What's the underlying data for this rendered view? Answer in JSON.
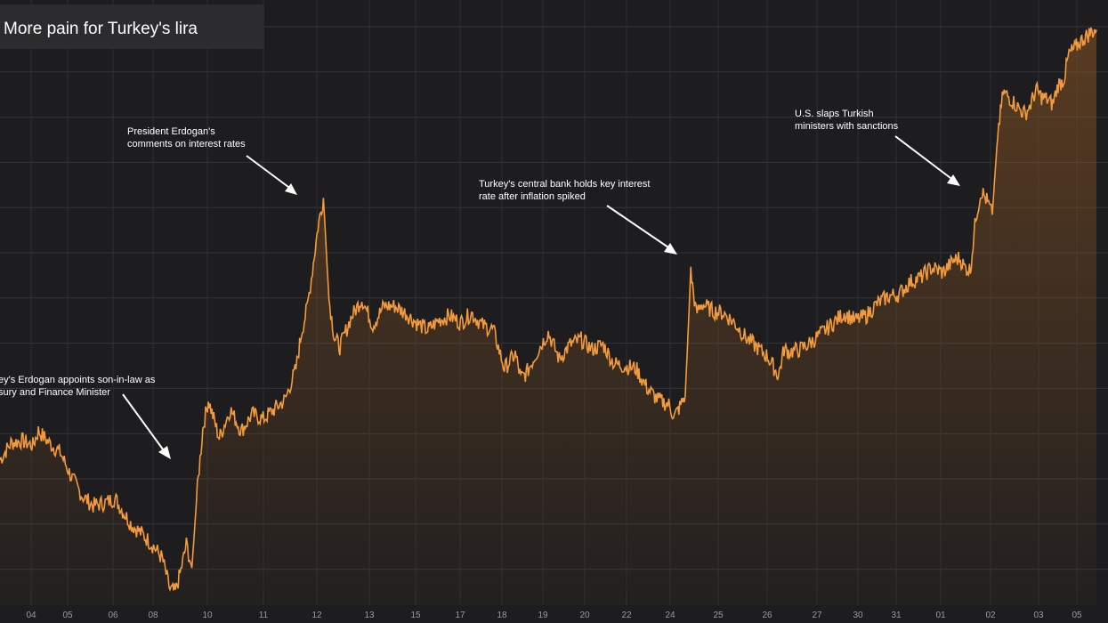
{
  "header": {
    "title": "More pain for Turkey's lira"
  },
  "colors": {
    "background": "#1d1d20",
    "grid": "#34343a",
    "line": "#f39a3c",
    "area_top": "#8a5522",
    "annotation": "#ffffff",
    "axis_text": "#9a9aa0"
  },
  "chart_data": {
    "type": "area",
    "title": "More pain for Turkey's lira",
    "xlabel": "",
    "ylabel": "",
    "grid": true,
    "x_tick_labels": [
      "04",
      "05",
      "06",
      "08",
      "10",
      "11",
      "12",
      "13",
      "15",
      "17",
      "18",
      "19",
      "20",
      "22",
      "24",
      "25",
      "26",
      "27",
      "30",
      "31",
      "01",
      "02",
      "03",
      "05"
    ],
    "series": [
      {
        "values_relative": [
          [
            0.0,
            0.59
          ],
          [
            0.01,
            0.66
          ],
          [
            0.02,
            0.67
          ],
          [
            0.03,
            0.65
          ],
          [
            0.035,
            0.71
          ],
          [
            0.045,
            0.66
          ],
          [
            0.055,
            0.62
          ],
          [
            0.065,
            0.52
          ],
          [
            0.075,
            0.44
          ],
          [
            0.085,
            0.4
          ],
          [
            0.095,
            0.41
          ],
          [
            0.105,
            0.43
          ],
          [
            0.11,
            0.39
          ],
          [
            0.12,
            0.32
          ],
          [
            0.13,
            0.28
          ],
          [
            0.14,
            0.23
          ],
          [
            0.148,
            0.18
          ],
          [
            0.155,
            0.05
          ],
          [
            0.16,
            0.04
          ],
          [
            0.165,
            0.13
          ],
          [
            0.17,
            0.24
          ],
          [
            0.175,
            0.14
          ],
          [
            0.18,
            0.47
          ],
          [
            0.185,
            0.72
          ],
          [
            0.19,
            0.84
          ],
          [
            0.195,
            0.76
          ],
          [
            0.2,
            0.68
          ],
          [
            0.21,
            0.8
          ],
          [
            0.22,
            0.71
          ],
          [
            0.23,
            0.78
          ],
          [
            0.24,
            0.76
          ],
          [
            0.25,
            0.8
          ],
          [
            0.26,
            0.84
          ],
          [
            0.27,
            0.97
          ],
          [
            0.275,
            1.12
          ],
          [
            0.28,
            1.22
          ],
          [
            0.285,
            1.38
          ],
          [
            0.29,
            1.56
          ],
          [
            0.295,
            1.68
          ],
          [
            0.3,
            1.26
          ],
          [
            0.305,
            1.1
          ],
          [
            0.31,
            1.06
          ],
          [
            0.32,
            1.18
          ],
          [
            0.33,
            1.26
          ],
          [
            0.34,
            1.15
          ],
          [
            0.35,
            1.23
          ],
          [
            0.36,
            1.23
          ],
          [
            0.37,
            1.2
          ],
          [
            0.38,
            1.16
          ],
          [
            0.39,
            1.13
          ],
          [
            0.4,
            1.17
          ],
          [
            0.41,
            1.19
          ],
          [
            0.42,
            1.16
          ],
          [
            0.43,
            1.2
          ],
          [
            0.44,
            1.15
          ],
          [
            0.45,
            1.13
          ],
          [
            0.46,
            0.97
          ],
          [
            0.47,
            1.03
          ],
          [
            0.475,
            0.93
          ],
          [
            0.48,
            0.95
          ],
          [
            0.49,
            1.04
          ],
          [
            0.5,
            1.12
          ],
          [
            0.51,
            1.01
          ],
          [
            0.52,
            1.07
          ],
          [
            0.53,
            1.09
          ],
          [
            0.54,
            1.05
          ],
          [
            0.55,
            1.07
          ],
          [
            0.56,
            0.99
          ],
          [
            0.57,
            0.98
          ],
          [
            0.58,
            0.97
          ],
          [
            0.59,
            0.89
          ],
          [
            0.6,
            0.84
          ],
          [
            0.61,
            0.82
          ],
          [
            0.615,
            0.77
          ],
          [
            0.62,
            0.81
          ],
          [
            0.625,
            0.86
          ],
          [
            0.63,
            1.37
          ],
          [
            0.635,
            1.2
          ],
          [
            0.64,
            1.24
          ],
          [
            0.65,
            1.21
          ],
          [
            0.66,
            1.2
          ],
          [
            0.67,
            1.16
          ],
          [
            0.68,
            1.1
          ],
          [
            0.69,
            1.06
          ],
          [
            0.7,
            1.02
          ],
          [
            0.705,
            0.98
          ],
          [
            0.71,
            0.94
          ],
          [
            0.715,
            1.05
          ],
          [
            0.72,
            1.04
          ],
          [
            0.73,
            1.05
          ],
          [
            0.74,
            1.08
          ],
          [
            0.75,
            1.12
          ],
          [
            0.76,
            1.16
          ],
          [
            0.77,
            1.2
          ],
          [
            0.78,
            1.17
          ],
          [
            0.79,
            1.19
          ],
          [
            0.8,
            1.24
          ],
          [
            0.81,
            1.27
          ],
          [
            0.82,
            1.28
          ],
          [
            0.83,
            1.33
          ],
          [
            0.84,
            1.35
          ],
          [
            0.85,
            1.39
          ],
          [
            0.86,
            1.37
          ],
          [
            0.87,
            1.42
          ],
          [
            0.875,
            1.43
          ],
          [
            0.88,
            1.39
          ],
          [
            0.885,
            1.38
          ],
          [
            0.89,
            1.6
          ],
          [
            0.895,
            1.71
          ],
          [
            0.9,
            1.67
          ],
          [
            0.905,
            1.61
          ],
          [
            0.91,
            1.95
          ],
          [
            0.915,
            2.12
          ],
          [
            0.92,
            2.1
          ],
          [
            0.93,
            2.05
          ],
          [
            0.935,
            2.03
          ],
          [
            0.94,
            2.07
          ],
          [
            0.945,
            2.13
          ],
          [
            0.95,
            2.1
          ],
          [
            0.955,
            2.09
          ],
          [
            0.96,
            2.07
          ],
          [
            0.965,
            2.15
          ],
          [
            0.97,
            2.17
          ],
          [
            0.975,
            2.28
          ],
          [
            0.98,
            2.3
          ],
          [
            0.985,
            2.33
          ],
          [
            0.99,
            2.35
          ],
          [
            0.995,
            2.37
          ],
          [
            1.0,
            2.38
          ]
        ]
      }
    ],
    "annotations": [
      {
        "lines": [
          "ey's Erdogan appoints son-in-law as",
          "sury and Finance Minister"
        ]
      },
      {
        "lines": [
          "President Erdogan's",
          "comments on interest rates"
        ]
      },
      {
        "lines": [
          "Turkey's central bank holds key interest",
          "rate after inflation spiked"
        ]
      },
      {
        "lines": [
          "U.S. slaps Turkish",
          "ministers with sanctions"
        ]
      }
    ]
  }
}
